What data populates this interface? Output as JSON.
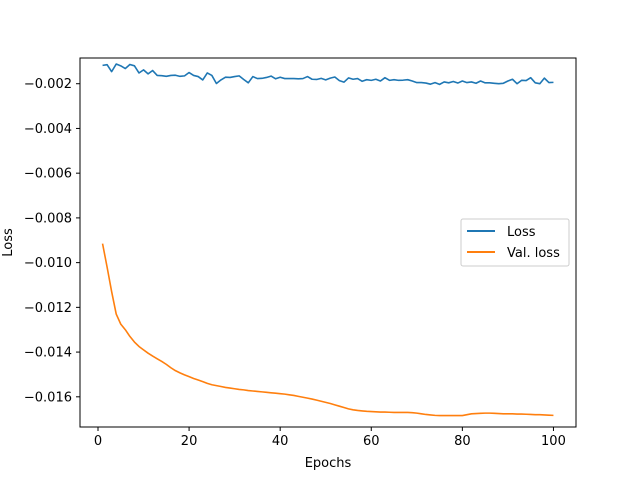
{
  "chart_data": {
    "type": "line",
    "title": "",
    "xlabel": "Epochs",
    "ylabel": "Loss",
    "xlim": [
      -3.95,
      104.95
    ],
    "ylim": [
      -0.01735,
      -0.00085
    ],
    "xticks": [
      0,
      20,
      40,
      60,
      80,
      100
    ],
    "xtick_labels": [
      "0",
      "20",
      "40",
      "60",
      "80",
      "100"
    ],
    "yticks": [
      -0.002,
      -0.004,
      -0.006,
      -0.008,
      -0.01,
      -0.012,
      -0.014,
      -0.016
    ],
    "ytick_labels": [
      "−0.002",
      "−0.004",
      "−0.006",
      "−0.008",
      "−0.010",
      "−0.012",
      "−0.014",
      "−0.016"
    ],
    "grid": false,
    "legend_position": "center-right",
    "series": [
      {
        "name": "Loss",
        "color": "#1f77b4",
        "x": [
          1,
          2,
          3,
          4,
          5,
          6,
          7,
          8,
          9,
          10,
          11,
          12,
          13,
          14,
          15,
          16,
          17,
          18,
          19,
          20,
          21,
          22,
          23,
          24,
          25,
          26,
          27,
          28,
          29,
          30,
          31,
          32,
          33,
          34,
          35,
          36,
          37,
          38,
          39,
          40,
          41,
          42,
          43,
          44,
          45,
          46,
          47,
          48,
          49,
          50,
          51,
          52,
          53,
          54,
          55,
          56,
          57,
          58,
          59,
          60,
          61,
          62,
          63,
          64,
          65,
          66,
          67,
          68,
          69,
          70,
          71,
          72,
          73,
          74,
          75,
          76,
          77,
          78,
          79,
          80,
          81,
          82,
          83,
          84,
          85,
          86,
          87,
          88,
          89,
          90,
          91,
          92,
          93,
          94,
          95,
          96,
          97,
          98,
          99,
          100
        ],
        "y": [
          -0.00118,
          -0.00115,
          -0.00146,
          -0.00112,
          -0.0012,
          -0.00132,
          -0.00114,
          -0.0012,
          -0.00152,
          -0.00138,
          -0.00156,
          -0.00141,
          -0.00163,
          -0.00164,
          -0.00167,
          -0.00163,
          -0.00162,
          -0.00167,
          -0.00165,
          -0.0015,
          -0.00163,
          -0.00168,
          -0.00183,
          -0.00152,
          -0.00163,
          -0.00199,
          -0.00183,
          -0.00171,
          -0.00172,
          -0.00168,
          -0.00165,
          -0.00181,
          -0.00196,
          -0.00168,
          -0.00177,
          -0.00176,
          -0.00172,
          -0.00166,
          -0.00178,
          -0.00171,
          -0.00177,
          -0.00177,
          -0.00177,
          -0.00178,
          -0.00177,
          -0.00168,
          -0.0018,
          -0.00181,
          -0.00176,
          -0.00183,
          -0.00175,
          -0.0017,
          -0.00186,
          -0.00193,
          -0.00174,
          -0.0018,
          -0.00177,
          -0.00189,
          -0.00182,
          -0.00185,
          -0.0018,
          -0.00188,
          -0.00173,
          -0.00185,
          -0.00182,
          -0.00185,
          -0.00184,
          -0.00182,
          -0.00188,
          -0.00195,
          -0.00195,
          -0.00197,
          -0.00202,
          -0.00195,
          -0.00203,
          -0.00192,
          -0.00196,
          -0.0019,
          -0.00197,
          -0.00188,
          -0.00195,
          -0.00192,
          -0.00198,
          -0.00188,
          -0.00196,
          -0.00196,
          -0.00198,
          -0.002,
          -0.00198,
          -0.00188,
          -0.0018,
          -0.002,
          -0.00185,
          -0.00186,
          -0.00173,
          -0.00196,
          -0.002,
          -0.00175,
          -0.00195,
          -0.00194
        ]
      },
      {
        "name": "Val. loss",
        "color": "#ff7f0e",
        "x": [
          1,
          2,
          3,
          4,
          5,
          6,
          7,
          8,
          9,
          10,
          11,
          12,
          13,
          14,
          15,
          16,
          17,
          18,
          19,
          20,
          21,
          22,
          23,
          24,
          25,
          26,
          27,
          28,
          29,
          30,
          31,
          32,
          33,
          34,
          35,
          36,
          37,
          38,
          39,
          40,
          41,
          42,
          43,
          44,
          45,
          46,
          47,
          48,
          49,
          50,
          51,
          52,
          53,
          54,
          55,
          56,
          57,
          58,
          59,
          60,
          61,
          62,
          63,
          64,
          65,
          66,
          67,
          68,
          69,
          70,
          71,
          72,
          73,
          74,
          75,
          76,
          77,
          78,
          79,
          80,
          81,
          82,
          83,
          84,
          85,
          86,
          87,
          88,
          89,
          90,
          91,
          92,
          93,
          94,
          95,
          96,
          97,
          98,
          99,
          100
        ],
        "y": [
          -0.00915,
          -0.0102,
          -0.0113,
          -0.0123,
          -0.01275,
          -0.013,
          -0.0133,
          -0.01355,
          -0.01375,
          -0.0139,
          -0.01405,
          -0.01418,
          -0.0143,
          -0.01442,
          -0.01455,
          -0.0147,
          -0.01483,
          -0.01493,
          -0.01502,
          -0.0151,
          -0.01518,
          -0.01525,
          -0.01532,
          -0.0154,
          -0.01546,
          -0.0155,
          -0.01554,
          -0.01558,
          -0.01561,
          -0.01564,
          -0.01567,
          -0.01569,
          -0.01572,
          -0.01574,
          -0.01576,
          -0.01578,
          -0.0158,
          -0.01582,
          -0.01584,
          -0.01586,
          -0.01588,
          -0.01591,
          -0.01594,
          -0.01598,
          -0.01602,
          -0.01606,
          -0.0161,
          -0.01615,
          -0.0162,
          -0.01625,
          -0.0163,
          -0.01636,
          -0.01642,
          -0.01648,
          -0.01654,
          -0.01658,
          -0.01661,
          -0.01663,
          -0.01665,
          -0.01666,
          -0.01667,
          -0.01668,
          -0.01668,
          -0.01669,
          -0.0167,
          -0.0167,
          -0.0167,
          -0.0167,
          -0.01671,
          -0.01673,
          -0.01676,
          -0.01679,
          -0.01681,
          -0.01683,
          -0.01684,
          -0.01684,
          -0.01684,
          -0.01684,
          -0.01684,
          -0.01684,
          -0.0168,
          -0.01676,
          -0.01675,
          -0.01674,
          -0.01673,
          -0.01673,
          -0.01674,
          -0.01675,
          -0.01676,
          -0.01676,
          -0.01676,
          -0.01677,
          -0.01677,
          -0.01678,
          -0.01679,
          -0.0168,
          -0.0168,
          -0.01681,
          -0.01682,
          -0.01683
        ]
      }
    ]
  }
}
